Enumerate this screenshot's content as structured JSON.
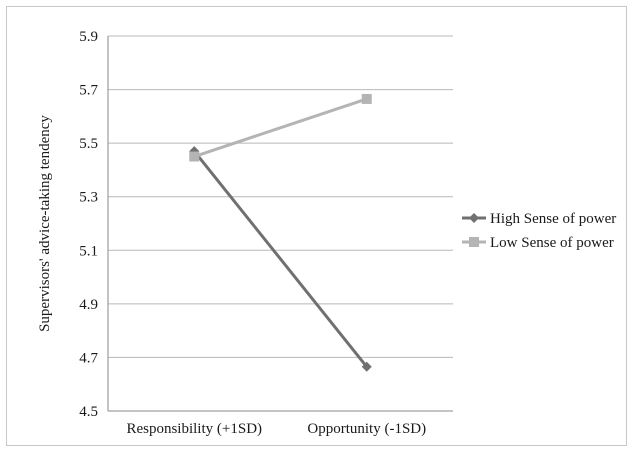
{
  "chart_data": {
    "type": "line",
    "title": "",
    "xlabel": "",
    "ylabel": "Supervisors' advice-taking tendency",
    "categories": [
      "Responsibility (+1SD)",
      "Opportunity (-1SD)"
    ],
    "ylim": [
      4.5,
      5.9
    ],
    "yticks": [
      "4.5",
      "4.7",
      "4.9",
      "5.1",
      "5.3",
      "5.5",
      "5.7",
      "5.9"
    ],
    "grid": "horizontal",
    "legend_position": "right",
    "series": [
      {
        "name": "High Sense of power",
        "values": [
          5.47,
          4.665
        ],
        "color": "#707070",
        "marker": "diamond"
      },
      {
        "name": "Low Sense of power",
        "values": [
          5.45,
          5.665
        ],
        "color": "#b4b4b4",
        "marker": "square"
      }
    ]
  }
}
